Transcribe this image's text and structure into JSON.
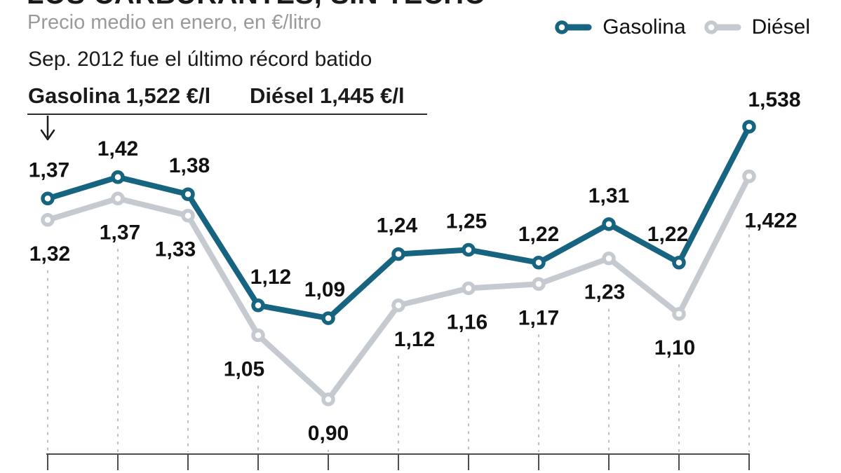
{
  "header": {
    "title": "LOS CARBURANTES, SIN TECHO",
    "subtitle": "Precio medio en enero, en €/litro"
  },
  "legend": [
    {
      "label": "Gasolina",
      "color": "#166480"
    },
    {
      "label": "Diésel",
      "color": "#c4cad0"
    }
  ],
  "annotation": {
    "record_note": "Sep. 2012 fue el último récord batido",
    "gasolina_record": "Gasolina 1,522 €/l",
    "diesel_record": "Diésel 1,445 €/l"
  },
  "colors": {
    "gasolina": "#166480",
    "diesel_line": "#c4cad0",
    "diesel_text": "#b4bbc3",
    "label_text": "#111111"
  },
  "chart_data": {
    "type": "line",
    "title": "LOS CARBURANTES, SIN TECHO",
    "subtitle": "Precio medio en enero, en €/litro",
    "x_count": 11,
    "categories": [
      "",
      "",
      "",
      "",
      "",
      "",
      "",
      "",
      "",
      "",
      ""
    ],
    "series": [
      {
        "name": "Gasolina",
        "color": "#166480",
        "values": [
          1.37,
          1.42,
          1.38,
          1.12,
          1.09,
          1.24,
          1.25,
          1.22,
          1.31,
          1.22,
          1.538
        ],
        "labels": [
          "1,37",
          "1,42",
          "1,38",
          "1,12",
          "1,09",
          "1,24",
          "1,25",
          "1,22",
          "1,31",
          "1,22",
          "1,538"
        ]
      },
      {
        "name": "Diésel",
        "color": "#c4cad0",
        "values": [
          1.32,
          1.37,
          1.33,
          1.05,
          0.9,
          1.12,
          1.16,
          1.17,
          1.23,
          1.1,
          1.422
        ],
        "labels": [
          "1,32",
          "1,37",
          "1,33",
          "1,05",
          "0,90",
          "1,12",
          "1,16",
          "1,17",
          "1,23",
          "1,10",
          "1,422"
        ]
      }
    ],
    "ylim": [
      0.9,
      1.55
    ],
    "grid": "vertical-dashed",
    "legend_position": "top-right",
    "xaxis_ticks": 11,
    "xaxis_labels_visible": false
  }
}
